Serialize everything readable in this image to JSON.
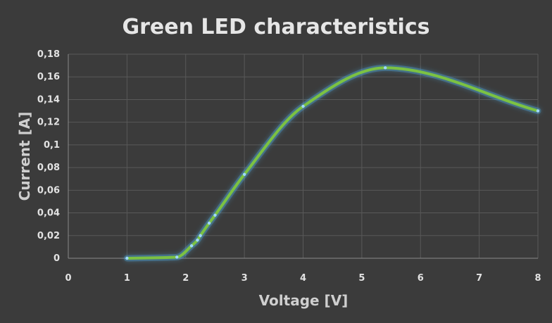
{
  "chart_data": {
    "type": "scatter",
    "title": "Green LED characteristics",
    "xlabel": "Voltage [V]",
    "ylabel": "Current [A]",
    "xlim": [
      0,
      8
    ],
    "ylim": [
      0,
      0.18
    ],
    "x_ticks": [
      0,
      1,
      2,
      3,
      4,
      5,
      6,
      7,
      8
    ],
    "x_tick_labels": [
      "0",
      "1",
      "2",
      "3",
      "4",
      "5",
      "6",
      "7",
      "8"
    ],
    "y_ticks": [
      0,
      0.02,
      0.04,
      0.06,
      0.08,
      0.1,
      0.12,
      0.14,
      0.16,
      0.18
    ],
    "y_tick_labels": [
      "0",
      "0,02",
      "0,04",
      "0,06",
      "0,08",
      "0,1",
      "0,12",
      "0,14",
      "0,16",
      "0,18"
    ],
    "grid": true,
    "smooth_line": true,
    "colors": {
      "line": "#7cc242",
      "glow": "#4fa7d8",
      "marker": "#9fd8ff",
      "background": "#3b3b3b"
    },
    "series": [
      {
        "points": [
          [
            1.0,
            0.0
          ],
          [
            1.85,
            0.001
          ],
          [
            2.1,
            0.011
          ],
          [
            2.2,
            0.016
          ],
          [
            2.25,
            0.02
          ],
          [
            2.4,
            0.031
          ],
          [
            2.5,
            0.038
          ],
          [
            3.0,
            0.074
          ],
          [
            4.0,
            0.134
          ],
          [
            5.4,
            0.168
          ],
          [
            8.0,
            0.13
          ]
        ]
      }
    ]
  }
}
